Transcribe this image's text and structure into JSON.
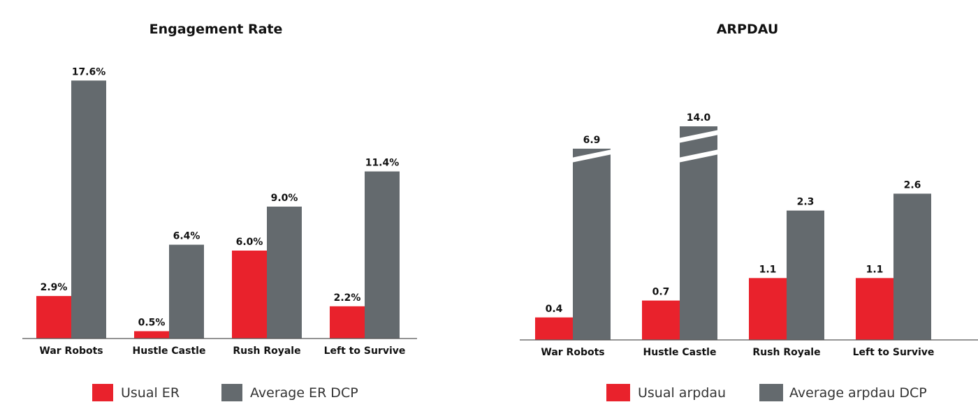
{
  "colors": {
    "usual": "#e9222c",
    "average": "#646a6e",
    "axis": "#555555",
    "break_gap": "#ffffff"
  },
  "chart_data": [
    {
      "type": "bar",
      "title": "Engagement Rate",
      "categories": [
        "War Robots",
        "Hustle Castle",
        "Rush Royale",
        "Left to Survive"
      ],
      "series": [
        {
          "name": "Usual ER",
          "values": [
            2.9,
            0.5,
            6.0,
            2.2
          ],
          "labels": [
            "2.9%",
            "0.5%",
            "6.0%",
            "2.2%"
          ]
        },
        {
          "name": "Average ER DCP",
          "values": [
            17.6,
            6.4,
            9.0,
            11.4
          ],
          "labels": [
            "17.6%",
            "6.4%",
            "9.0%",
            "11.4%"
          ]
        }
      ],
      "ylim": [
        0,
        18
      ],
      "grid": false,
      "legend_position": "bottom",
      "axis_breaks": []
    },
    {
      "type": "bar",
      "title": "ARPDAU",
      "categories": [
        "War Robots",
        "Hustle Castle",
        "Rush Royale",
        "Left to Survive"
      ],
      "series": [
        {
          "name": "Usual arpdau",
          "values": [
            0.4,
            0.7,
            1.1,
            1.1
          ],
          "labels": [
            "0.4",
            "0.7",
            "1.1",
            "1.1"
          ]
        },
        {
          "name": "Average arpdau DCP",
          "values": [
            6.9,
            14.0,
            2.3,
            2.6
          ],
          "labels": [
            "6.9",
            "14.0",
            "2.3",
            "2.6"
          ]
        }
      ],
      "ylim": [
        0,
        3.4
      ],
      "grid": false,
      "legend_position": "bottom",
      "axis_breaks": [
        {
          "series": 1,
          "category": 0,
          "breaks": 1
        },
        {
          "series": 1,
          "category": 1,
          "breaks": 2
        }
      ]
    }
  ]
}
